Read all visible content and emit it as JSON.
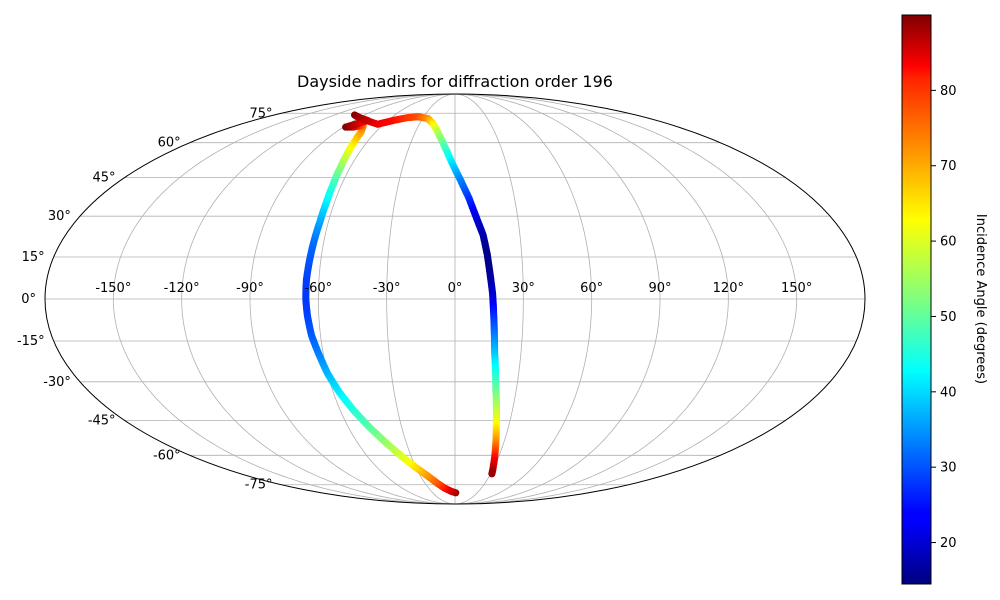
{
  "chart_data": {
    "type": "scatter",
    "projection": "mollweide",
    "title": "Dayside nadirs for diffraction order 196",
    "xlabel": "",
    "ylabel": "",
    "grid": true,
    "xlim": [
      -180,
      180
    ],
    "ylim": [
      -90,
      90
    ],
    "lon_ticks": [
      -150,
      -120,
      -90,
      -60,
      -30,
      0,
      30,
      60,
      90,
      120,
      150
    ],
    "lon_tick_labels": [
      "-150°",
      "-120°",
      "-90°",
      "-60°",
      "-30°",
      "0°",
      "30°",
      "60°",
      "90°",
      "120°",
      "150°"
    ],
    "lat_ticks": [
      75,
      60,
      45,
      30,
      15,
      0,
      -15,
      -30,
      -45,
      -60,
      -75
    ],
    "lat_tick_labels": [
      "75°",
      "60°",
      "45°",
      "30°",
      "15°",
      "0°",
      "-15°",
      "-30°",
      "-45°",
      "-60°",
      "-75°"
    ],
    "colorbar": {
      "label": "Incidence Angle (degrees)",
      "colormap": "jet",
      "range": [
        14.5,
        90
      ],
      "ticks": [
        20,
        30,
        40,
        50,
        60,
        70,
        80
      ],
      "tick_labels": [
        "20",
        "30",
        "40",
        "50",
        "60",
        "70",
        "80"
      ]
    },
    "series": [
      {
        "points": [
          {
            "lon": 1,
            "lat": -80,
            "c": 88
          },
          {
            "lon": -5,
            "lat": -79,
            "c": 85
          },
          {
            "lon": -12,
            "lat": -77,
            "c": 80
          },
          {
            "lon": -18,
            "lat": -74,
            "c": 75
          },
          {
            "lon": -24,
            "lat": -70,
            "c": 70
          },
          {
            "lon": -30,
            "lat": -66,
            "c": 65
          },
          {
            "lon": -36,
            "lat": -61,
            "c": 60
          },
          {
            "lon": -42,
            "lat": -55,
            "c": 55
          },
          {
            "lon": -48,
            "lat": -48,
            "c": 50
          },
          {
            "lon": -53,
            "lat": -41,
            "c": 46
          },
          {
            "lon": -57,
            "lat": -34,
            "c": 42
          },
          {
            "lon": -60,
            "lat": -27,
            "c": 38
          },
          {
            "lon": -62,
            "lat": -20,
            "c": 34
          },
          {
            "lon": -64,
            "lat": -13,
            "c": 31
          },
          {
            "lon": -65,
            "lat": -6,
            "c": 29
          },
          {
            "lon": -65.5,
            "lat": 0,
            "c": 28
          },
          {
            "lon": -65.5,
            "lat": 7,
            "c": 28.5
          },
          {
            "lon": -65,
            "lat": 14,
            "c": 30
          },
          {
            "lon": -64.5,
            "lat": 21,
            "c": 32
          },
          {
            "lon": -64,
            "lat": 28,
            "c": 36
          },
          {
            "lon": -64,
            "lat": 35,
            "c": 41
          },
          {
            "lon": -64.5,
            "lat": 42,
            "c": 46
          },
          {
            "lon": -65.5,
            "lat": 49,
            "c": 52
          },
          {
            "lon": -67,
            "lat": 55,
            "c": 58
          },
          {
            "lon": -69,
            "lat": 61,
            "c": 64
          },
          {
            "lon": -71,
            "lat": 65,
            "c": 68
          },
          {
            "lon": -73.5,
            "lat": 67,
            "c": 70
          },
          {
            "lon": -76,
            "lat": 68.5,
            "c": 72
          },
          {
            "lon": -82,
            "lat": 67.5,
            "c": 82
          },
          {
            "lon": -88,
            "lat": 67.5,
            "c": 90
          },
          {
            "lon": -78,
            "lat": 71,
            "c": 80
          },
          {
            "lon": -90,
            "lat": 72.5,
            "c": 88
          },
          {
            "lon": -100,
            "lat": 74,
            "c": 90
          },
          {
            "lon": -65,
            "lat": 69,
            "c": 82
          },
          {
            "lon": -55,
            "lat": 71,
            "c": 80
          },
          {
            "lon": -45,
            "lat": 72.5,
            "c": 77
          },
          {
            "lon": -35,
            "lat": 73,
            "c": 75
          },
          {
            "lon": -25,
            "lat": 72,
            "c": 70
          },
          {
            "lon": -19,
            "lat": 69.5,
            "c": 64
          },
          {
            "lon": -14,
            "lat": 66,
            "c": 58
          },
          {
            "lon": -9,
            "lat": 61,
            "c": 52
          },
          {
            "lon": -5,
            "lat": 56,
            "c": 46
          },
          {
            "lon": -1,
            "lat": 50,
            "c": 40
          },
          {
            "lon": 3,
            "lat": 44,
            "c": 34
          },
          {
            "lon": 7,
            "lat": 37,
            "c": 28
          },
          {
            "lon": 10,
            "lat": 30,
            "c": 22
          },
          {
            "lon": 13,
            "lat": 23,
            "c": 18
          },
          {
            "lon": 14.5,
            "lat": 16,
            "c": 15
          },
          {
            "lon": 15.5,
            "lat": 9,
            "c": 16
          },
          {
            "lon": 16.5,
            "lat": 2,
            "c": 20
          },
          {
            "lon": 17,
            "lat": -5,
            "c": 26
          },
          {
            "lon": 17.5,
            "lat": -12,
            "c": 32
          },
          {
            "lon": 18,
            "lat": -19,
            "c": 38
          },
          {
            "lon": 19,
            "lat": -26,
            "c": 44
          },
          {
            "lon": 20,
            "lat": -33,
            "c": 50
          },
          {
            "lon": 21.5,
            "lat": -40,
            "c": 56
          },
          {
            "lon": 23,
            "lat": -47,
            "c": 62
          },
          {
            "lon": 25,
            "lat": -54,
            "c": 70
          },
          {
            "lon": 27,
            "lat": -60,
            "c": 78
          },
          {
            "lon": 29,
            "lat": -65,
            "c": 84
          },
          {
            "lon": 31,
            "lat": -69,
            "c": 88
          }
        ]
      }
    ]
  }
}
